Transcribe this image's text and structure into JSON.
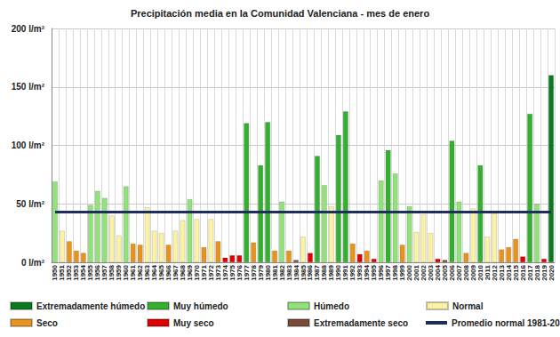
{
  "chart_data": {
    "type": "bar",
    "title": "Precipitación media en la Comunidad Valenciana - mes de enero",
    "categories": [
      "1950",
      "1951",
      "1952",
      "1953",
      "1954",
      "1955",
      "1956",
      "1957",
      "1958",
      "1959",
      "1960",
      "1961",
      "1962",
      "1963",
      "1964",
      "1965",
      "1966",
      "1967",
      "1968",
      "1969",
      "1970",
      "1971",
      "1972",
      "1973",
      "1974",
      "1975",
      "1976",
      "1977",
      "1978",
      "1979",
      "1980",
      "1981",
      "1982",
      "1983",
      "1984",
      "1985",
      "1986",
      "1987",
      "1988",
      "1989",
      "1990",
      "1991",
      "1992",
      "1993",
      "1994",
      "1995",
      "1996",
      "1997",
      "1998",
      "1999",
      "2000",
      "2001",
      "2002",
      "2003",
      "2004",
      "2005",
      "2006",
      "2007",
      "2008",
      "2009",
      "2010",
      "2011",
      "2012",
      "2013",
      "2014",
      "2015",
      "2016",
      "2017",
      "2018",
      "2019",
      "2020"
    ],
    "series": [
      {
        "name": "Extremadamente húmedo",
        "color": "#0b7a1f",
        "values": [
          null,
          null,
          null,
          null,
          null,
          null,
          null,
          null,
          null,
          null,
          null,
          null,
          null,
          null,
          null,
          null,
          null,
          null,
          null,
          null,
          null,
          null,
          null,
          null,
          null,
          null,
          null,
          null,
          null,
          null,
          null,
          null,
          null,
          null,
          null,
          null,
          null,
          null,
          null,
          null,
          null,
          null,
          null,
          null,
          null,
          null,
          null,
          null,
          null,
          null,
          null,
          null,
          null,
          null,
          null,
          null,
          null,
          null,
          null,
          null,
          null,
          null,
          null,
          null,
          null,
          null,
          null,
          null,
          null,
          null,
          160
        ]
      },
      {
        "name": "Muy húmedo",
        "color": "#33b02e",
        "values": [
          null,
          null,
          null,
          null,
          null,
          null,
          null,
          null,
          null,
          null,
          null,
          null,
          null,
          null,
          null,
          null,
          null,
          null,
          null,
          null,
          null,
          null,
          null,
          null,
          null,
          null,
          null,
          119,
          null,
          83,
          120,
          null,
          null,
          null,
          null,
          null,
          null,
          91,
          null,
          null,
          109,
          129,
          null,
          null,
          null,
          null,
          null,
          96,
          null,
          null,
          null,
          null,
          null,
          null,
          null,
          null,
          104,
          null,
          null,
          null,
          83,
          null,
          null,
          null,
          null,
          null,
          null,
          127,
          null,
          null,
          null
        ]
      },
      {
        "name": "Húmedo",
        "color": "#92e27a",
        "values": [
          69,
          null,
          null,
          null,
          null,
          49,
          61,
          55,
          null,
          null,
          65,
          null,
          null,
          null,
          null,
          null,
          null,
          null,
          null,
          54,
          null,
          null,
          null,
          null,
          null,
          null,
          null,
          null,
          null,
          null,
          null,
          null,
          52,
          null,
          null,
          null,
          null,
          null,
          66,
          null,
          null,
          null,
          null,
          null,
          null,
          null,
          70,
          null,
          76,
          null,
          48,
          null,
          null,
          null,
          null,
          null,
          null,
          52,
          null,
          null,
          null,
          null,
          null,
          null,
          null,
          null,
          null,
          null,
          50,
          null,
          null
        ]
      },
      {
        "name": "Normal",
        "color": "#fbf2a6",
        "values": [
          null,
          27,
          null,
          null,
          null,
          null,
          null,
          null,
          40,
          23,
          null,
          null,
          null,
          47,
          27,
          25,
          null,
          27,
          36,
          null,
          37,
          null,
          37,
          null,
          null,
          null,
          null,
          null,
          null,
          null,
          null,
          null,
          null,
          null,
          null,
          22,
          null,
          null,
          null,
          48,
          null,
          null,
          null,
          null,
          null,
          null,
          null,
          null,
          null,
          null,
          null,
          26,
          41,
          25,
          null,
          null,
          null,
          null,
          null,
          46,
          null,
          22,
          42,
          null,
          null,
          null,
          null,
          null,
          null,
          null,
          null
        ]
      },
      {
        "name": "Seco",
        "color": "#e8931c",
        "values": [
          null,
          null,
          18,
          10,
          8,
          null,
          null,
          null,
          null,
          null,
          null,
          16,
          15,
          null,
          null,
          null,
          15,
          null,
          null,
          null,
          null,
          13,
          null,
          18,
          null,
          null,
          null,
          null,
          17,
          null,
          null,
          10,
          null,
          10,
          null,
          null,
          null,
          null,
          null,
          null,
          null,
          null,
          16,
          null,
          10,
          null,
          null,
          null,
          null,
          15,
          null,
          null,
          null,
          null,
          null,
          null,
          null,
          null,
          8,
          null,
          null,
          null,
          null,
          11,
          13,
          20,
          null,
          null,
          null,
          null,
          null
        ]
      },
      {
        "name": "Muy seco",
        "color": "#e00000",
        "values": [
          null,
          null,
          null,
          null,
          null,
          null,
          null,
          null,
          null,
          null,
          null,
          null,
          null,
          null,
          null,
          null,
          null,
          null,
          null,
          null,
          null,
          null,
          null,
          null,
          4,
          6,
          6,
          null,
          null,
          null,
          null,
          null,
          null,
          null,
          null,
          null,
          8,
          null,
          null,
          null,
          null,
          null,
          null,
          7,
          null,
          3,
          null,
          null,
          null,
          null,
          null,
          null,
          null,
          null,
          3,
          null,
          null,
          null,
          null,
          null,
          null,
          null,
          null,
          null,
          null,
          null,
          5,
          null,
          null,
          3,
          null
        ]
      },
      {
        "name": "Extremadamente seco",
        "color": "#7a4a3a",
        "values": [
          null,
          null,
          null,
          null,
          null,
          null,
          null,
          null,
          null,
          null,
          null,
          null,
          null,
          null,
          null,
          null,
          null,
          null,
          null,
          null,
          null,
          null,
          null,
          null,
          null,
          null,
          null,
          null,
          null,
          null,
          null,
          null,
          null,
          null,
          2,
          null,
          null,
          null,
          null,
          null,
          null,
          null,
          null,
          null,
          null,
          null,
          null,
          null,
          null,
          null,
          null,
          null,
          null,
          null,
          null,
          2,
          null,
          null,
          null,
          null,
          null,
          null,
          null,
          null,
          null,
          null,
          null,
          null,
          null,
          null,
          null
        ]
      },
      {
        "name": "Promedio normal 1981-2010",
        "type": "line",
        "color": "#1c2d5e",
        "values": [
          43,
          43,
          43,
          43,
          43,
          43,
          43,
          43,
          43,
          43,
          43,
          43,
          43,
          43,
          43,
          43,
          43,
          43,
          43,
          43,
          43,
          43,
          43,
          43,
          43,
          43,
          43,
          43,
          43,
          43,
          43,
          43,
          43,
          43,
          43,
          43,
          43,
          43,
          43,
          43,
          43,
          43,
          43,
          43,
          43,
          43,
          43,
          43,
          43,
          43,
          43,
          43,
          43,
          43,
          43,
          43,
          43,
          43,
          43,
          43,
          43,
          43,
          43,
          43,
          43,
          43,
          43,
          43,
          43,
          43,
          43
        ]
      }
    ],
    "ylim": [
      0,
      200
    ],
    "yticks": [
      {
        "value": 0,
        "label": "0 l/m²"
      },
      {
        "value": 50,
        "label": "50 l/m²"
      },
      {
        "value": 100,
        "label": "100 l/m²"
      },
      {
        "value": 150,
        "label": "150 l/m²"
      },
      {
        "value": 200,
        "label": "200 l/m²"
      }
    ],
    "stacked": true,
    "grid": true,
    "legend": "bottom"
  }
}
